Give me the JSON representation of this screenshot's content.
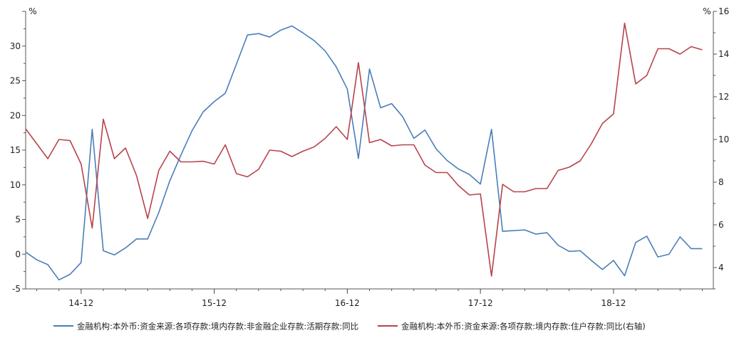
{
  "chart_data": {
    "type": "line",
    "title": "",
    "y_left_unit": "%",
    "y_right_unit": "%",
    "y_left_lim": [
      -5,
      35
    ],
    "y_left_ticks": [
      -5,
      0,
      5,
      10,
      15,
      20,
      25,
      30
    ],
    "y_right_lim": [
      3,
      16
    ],
    "y_right_ticks": [
      4,
      6,
      8,
      10,
      12,
      14,
      16
    ],
    "x_lim": [
      0,
      62
    ],
    "x_ticks": [
      {
        "label": "14-12",
        "x": 5
      },
      {
        "label": "15-12",
        "x": 17
      },
      {
        "label": "16-12",
        "x": 29
      },
      {
        "label": "17-12",
        "x": 41
      },
      {
        "label": "18-12",
        "x": 53
      }
    ],
    "grid": false,
    "legend_position": "bottom",
    "series": [
      {
        "name": "金融机构:本外币:资金来源:各项存款:境内存款:非金融企业存款:活期存款:同比",
        "axis": "left",
        "color": "#4a7eba",
        "values": [
          0.3,
          -0.8,
          -1.5,
          -3.7,
          -2.9,
          -1.2,
          18.0,
          0.5,
          -0.1,
          0.9,
          2.2,
          2.2,
          6.0,
          10.6,
          14.3,
          17.8,
          20.5,
          22.0,
          23.2,
          27.4,
          31.6,
          31.8,
          31.3,
          32.3,
          32.9,
          31.9,
          30.8,
          29.3,
          27.0,
          23.8,
          13.8,
          26.7,
          21.1,
          21.7,
          19.8,
          16.7,
          17.9,
          15.2,
          13.5,
          12.3,
          11.5,
          10.1,
          18.0,
          3.3,
          3.4,
          3.5,
          2.9,
          3.1,
          1.3,
          0.4,
          0.5,
          -0.9,
          -2.2,
          -0.9,
          -3.1,
          1.7,
          2.6,
          -0.4,
          0.0,
          2.5,
          0.8,
          0.8
        ]
      },
      {
        "name": "金融机构:本外币:资金来源:各项存款:境内存款:住户存款:同比(右轴)",
        "axis": "right",
        "color": "#b8434b",
        "values": [
          10.5,
          9.8,
          9.1,
          10.0,
          9.95,
          8.85,
          5.85,
          10.95,
          9.1,
          9.6,
          8.3,
          6.3,
          8.55,
          9.45,
          8.95,
          8.95,
          8.98,
          8.85,
          9.75,
          8.4,
          8.25,
          8.6,
          9.5,
          9.45,
          9.2,
          9.45,
          9.65,
          10.05,
          10.6,
          10.0,
          13.6,
          9.85,
          10.0,
          9.7,
          9.75,
          9.75,
          8.8,
          8.45,
          8.45,
          7.85,
          7.4,
          7.45,
          3.6,
          7.9,
          7.55,
          7.55,
          7.7,
          7.7,
          8.55,
          8.7,
          9.0,
          9.8,
          10.75,
          11.2,
          15.45,
          12.6,
          13.0,
          14.25,
          14.25,
          14.0,
          14.35,
          14.2
        ]
      }
    ]
  }
}
